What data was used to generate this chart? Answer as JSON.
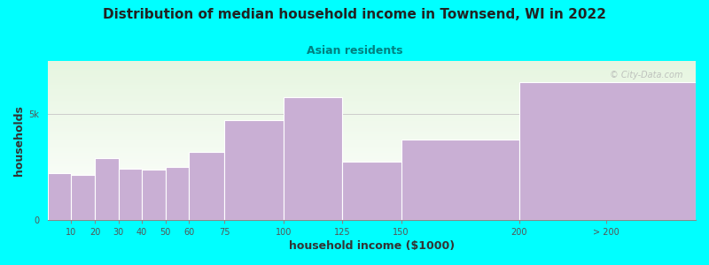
{
  "title": "Distribution of median household income in Townsend, WI in 2022",
  "subtitle": "Asian residents",
  "xlabel": "household income ($1000)",
  "ylabel": "households",
  "background_color": "#00FFFF",
  "bar_color": "#c9afd4",
  "bar_edge_color": "#ffffff",
  "watermark": "© City-Data.com",
  "categories": [
    "10",
    "20",
    "30",
    "40",
    "50",
    "60",
    "75",
    "100",
    "125",
    "150",
    "200",
    "> 200"
  ],
  "left_edges": [
    0,
    10,
    20,
    30,
    40,
    50,
    60,
    75,
    100,
    125,
    150,
    200
  ],
  "widths": [
    10,
    10,
    10,
    10,
    10,
    10,
    15,
    25,
    25,
    25,
    50,
    75
  ],
  "values": [
    2200,
    2100,
    2900,
    2400,
    2350,
    2500,
    3200,
    4700,
    5800,
    2750,
    3800,
    6500
  ],
  "ylim": [
    0,
    7500
  ],
  "yticks": [
    0,
    5000
  ],
  "ytick_labels": [
    "0",
    "5k"
  ],
  "plot_bg_top_color": "#e6f5e0",
  "plot_bg_bottom_color": "#ffffff"
}
